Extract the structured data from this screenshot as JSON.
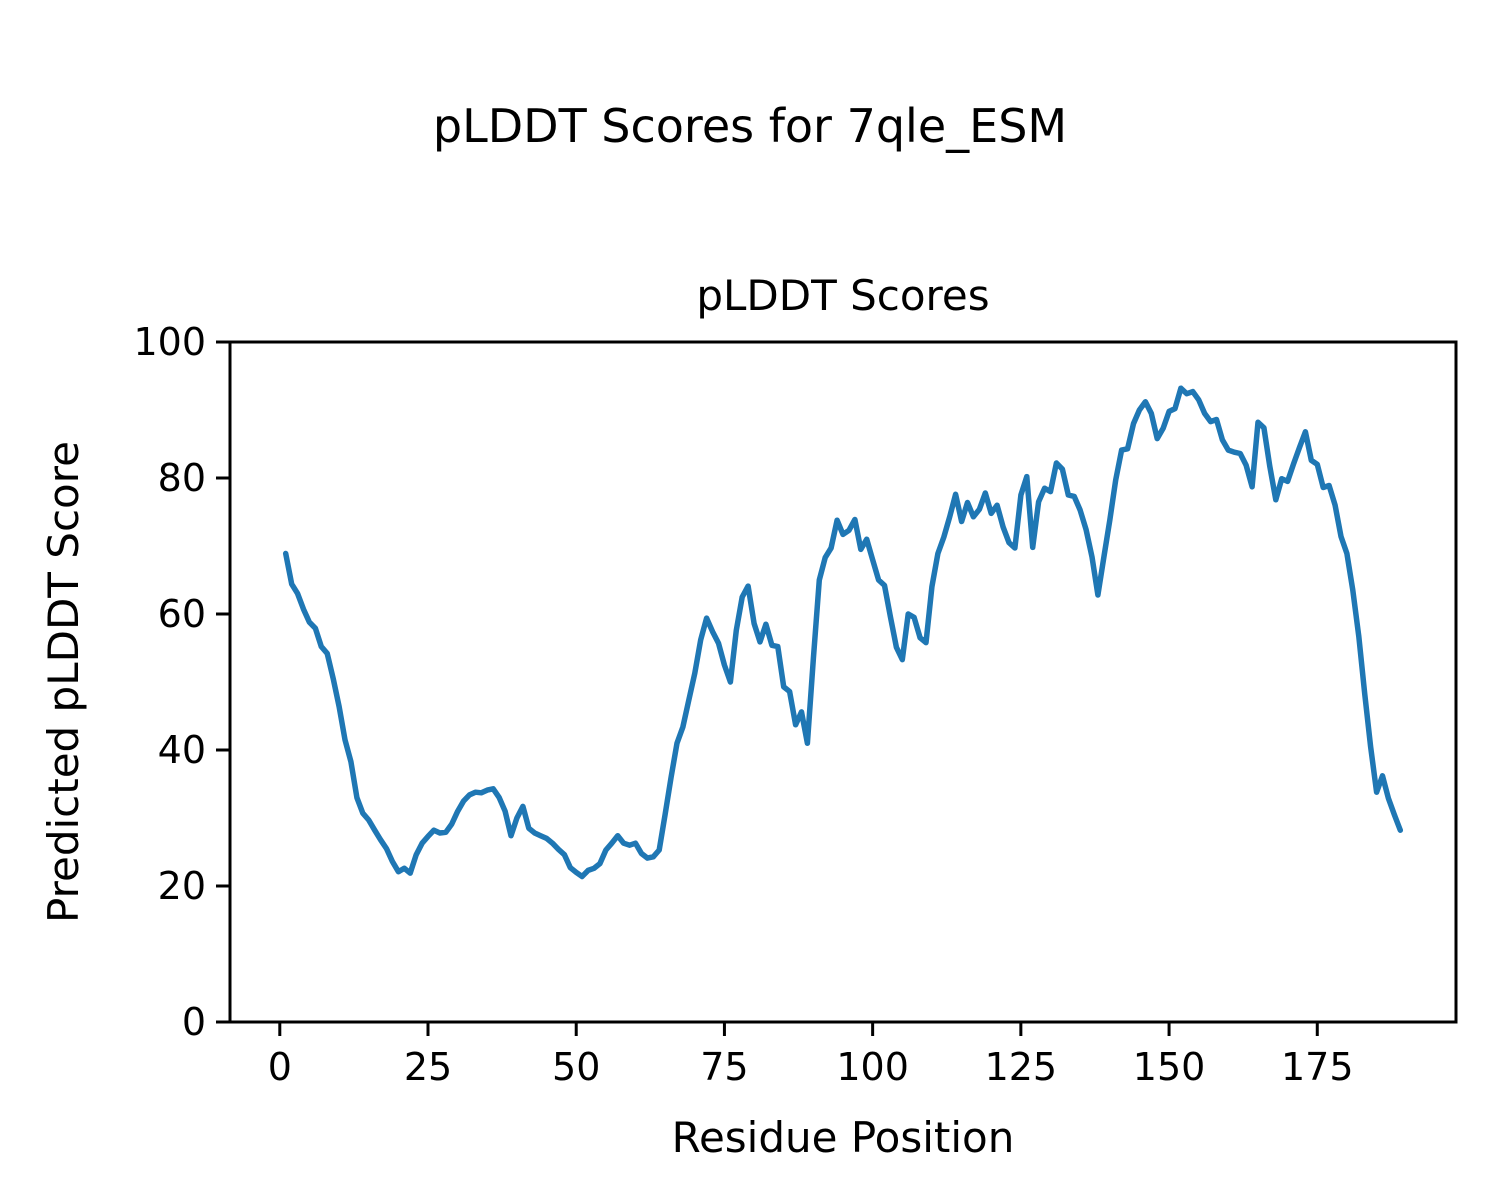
{
  "figure": {
    "suptitle": "pLDDT Scores for 7qle_ESM",
    "background": "#ffffff"
  },
  "chart_data": {
    "type": "line",
    "title": "pLDDT Scores",
    "xlabel": "Residue Position",
    "ylabel": "Predicted pLDDT Score",
    "legend": null,
    "grid": false,
    "line_color": "#1f77b4",
    "axis_color": "#000000",
    "xlim": [
      -8.4,
      198.4
    ],
    "ylim": [
      0,
      100
    ],
    "x_ticks": [
      0,
      25,
      50,
      75,
      100,
      125,
      150,
      175
    ],
    "y_ticks": [
      0,
      20,
      40,
      60,
      80,
      100
    ],
    "x_start": 1,
    "x_step": 1,
    "x": [
      1,
      2,
      3,
      4,
      5,
      6,
      7,
      8,
      9,
      10,
      11,
      12,
      13,
      14,
      15,
      16,
      17,
      18,
      19,
      20,
      21,
      22,
      23,
      24,
      25,
      26,
      27,
      28,
      29,
      30,
      31,
      32,
      33,
      34,
      35,
      36,
      37,
      38,
      39,
      40,
      41,
      42,
      43,
      44,
      45,
      46,
      47,
      48,
      49,
      50,
      51,
      52,
      53,
      54,
      55,
      56,
      57,
      58,
      59,
      60,
      61,
      62,
      63,
      64,
      65,
      66,
      67,
      68,
      69,
      70,
      71,
      72,
      73,
      74,
      75,
      76,
      77,
      78,
      79,
      80,
      81,
      82,
      83,
      84,
      85,
      86,
      87,
      88,
      89,
      90,
      91,
      92,
      93,
      94,
      95,
      96,
      97,
      98,
      99,
      100,
      101,
      102,
      103,
      104,
      105,
      106,
      107,
      108,
      109,
      110,
      111,
      112,
      113,
      114,
      115,
      116,
      117,
      118,
      119,
      120,
      121,
      122,
      123,
      124,
      125,
      126,
      127,
      128,
      129,
      130,
      131,
      132,
      133,
      134,
      135,
      136,
      137,
      138,
      139,
      140,
      141,
      142,
      143,
      144,
      145,
      146,
      147,
      148,
      149,
      150,
      151,
      152,
      153,
      154,
      155,
      156,
      157,
      158,
      159,
      160,
      161,
      162,
      163,
      164,
      165,
      166,
      167,
      168,
      169,
      170,
      171,
      172,
      173,
      174,
      175,
      176,
      177,
      178,
      179,
      180,
      181,
      182,
      183,
      184,
      185,
      186,
      187,
      188,
      189
    ],
    "y": [
      68.9,
      64.4,
      63.0,
      60.7,
      58.8,
      57.9,
      55.2,
      54.2,
      50.5,
      46.4,
      41.5,
      38.3,
      33.0,
      30.7,
      29.7,
      28.2,
      26.8,
      25.5,
      23.6,
      22.1,
      22.6,
      21.9,
      24.6,
      26.3,
      27.3,
      28.2,
      27.8,
      27.9,
      29.1,
      31.0,
      32.5,
      33.4,
      33.8,
      33.7,
      34.1,
      34.3,
      33.0,
      31.0,
      27.4,
      30.0,
      31.7,
      28.5,
      27.8,
      27.4,
      27.0,
      26.3,
      25.4,
      24.6,
      22.7,
      22.0,
      21.4,
      22.3,
      22.6,
      23.3,
      25.3,
      26.3,
      27.4,
      26.3,
      26.0,
      26.3,
      24.8,
      24.1,
      24.3,
      25.3,
      30.5,
      36.0,
      41.0,
      43.4,
      47.4,
      51.3,
      56.2,
      59.4,
      57.4,
      55.7,
      52.5,
      50.0,
      57.6,
      62.5,
      64.1,
      58.6,
      55.9,
      58.5,
      55.4,
      55.2,
      49.3,
      48.6,
      43.7,
      45.6,
      41.0,
      53.5,
      65.0,
      68.3,
      69.7,
      73.8,
      71.7,
      72.3,
      73.9,
      69.5,
      71.0,
      68.0,
      65.0,
      64.2,
      59.6,
      55.1,
      53.3,
      60.0,
      59.5,
      56.5,
      55.8,
      64.0,
      68.9,
      71.3,
      74.3,
      77.6,
      73.6,
      76.4,
      74.3,
      75.4,
      77.8,
      74.8,
      76.0,
      72.8,
      70.5,
      69.7,
      77.5,
      80.2,
      69.8,
      76.5,
      78.5,
      78.0,
      82.2,
      81.3,
      77.5,
      77.3,
      75.3,
      72.4,
      68.4,
      62.8,
      68.4,
      73.8,
      79.7,
      84.1,
      84.3,
      88.0,
      90.0,
      91.2,
      89.5,
      85.8,
      87.3,
      89.8,
      90.2,
      93.2,
      92.4,
      92.7,
      91.5,
      89.5,
      88.3,
      88.6,
      85.6,
      84.1,
      83.8,
      83.6,
      81.9,
      78.7,
      88.2,
      87.4,
      81.7,
      76.8,
      79.9,
      79.5,
      82.1,
      84.5,
      86.8,
      82.6,
      82.0,
      78.6,
      78.9,
      76.0,
      71.4,
      68.9,
      63.5,
      56.7,
      48.3,
      40.5,
      33.8,
      36.2,
      32.9,
      30.5,
      28.2
    ]
  }
}
